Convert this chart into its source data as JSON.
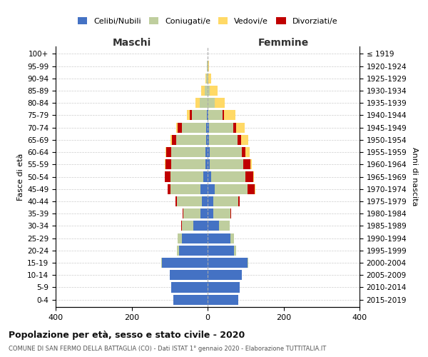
{
  "age_groups": [
    "0-4",
    "5-9",
    "10-14",
    "15-19",
    "20-24",
    "25-29",
    "30-34",
    "35-39",
    "40-44",
    "45-49",
    "50-54",
    "55-59",
    "60-64",
    "65-69",
    "70-74",
    "75-79",
    "80-84",
    "85-89",
    "90-94",
    "95-99",
    "100+"
  ],
  "birth_years": [
    "2015-2019",
    "2010-2014",
    "2005-2009",
    "2000-2004",
    "1995-1999",
    "1990-1994",
    "1985-1989",
    "1980-1984",
    "1975-1979",
    "1970-1974",
    "1965-1969",
    "1960-1964",
    "1955-1959",
    "1950-1954",
    "1945-1949",
    "1940-1944",
    "1935-1939",
    "1930-1934",
    "1925-1929",
    "1920-1924",
    "≤ 1919"
  ],
  "male": {
    "celibi": [
      90,
      95,
      100,
      120,
      75,
      68,
      38,
      18,
      15,
      18,
      12,
      6,
      5,
      4,
      3,
      2,
      0,
      0,
      0,
      0,
      0
    ],
    "coniugati": [
      0,
      0,
      0,
      2,
      5,
      10,
      30,
      45,
      65,
      80,
      85,
      90,
      90,
      78,
      65,
      40,
      20,
      8,
      3,
      1,
      0
    ],
    "vedovi": [
      0,
      0,
      0,
      0,
      0,
      0,
      0,
      0,
      0,
      0,
      0,
      1,
      2,
      3,
      5,
      8,
      12,
      8,
      3,
      1,
      0
    ],
    "divorziati": [
      0,
      0,
      0,
      0,
      0,
      1,
      2,
      3,
      5,
      8,
      15,
      15,
      13,
      12,
      10,
      5,
      0,
      0,
      0,
      0,
      0
    ]
  },
  "female": {
    "nubili": [
      80,
      85,
      90,
      105,
      70,
      60,
      30,
      15,
      15,
      18,
      10,
      6,
      5,
      4,
      3,
      2,
      0,
      0,
      0,
      0,
      0
    ],
    "coniugate": [
      0,
      0,
      0,
      2,
      5,
      10,
      28,
      45,
      65,
      88,
      90,
      88,
      85,
      75,
      65,
      38,
      18,
      6,
      2,
      1,
      0
    ],
    "vedove": [
      0,
      0,
      0,
      0,
      0,
      0,
      0,
      0,
      0,
      1,
      2,
      5,
      10,
      18,
      22,
      30,
      28,
      20,
      8,
      3,
      0
    ],
    "divorziate": [
      0,
      0,
      0,
      0,
      0,
      0,
      1,
      2,
      5,
      18,
      20,
      18,
      10,
      10,
      8,
      3,
      0,
      0,
      0,
      0,
      0
    ]
  },
  "colors": {
    "celibi": "#4472C4",
    "coniugati": "#BFCE9E",
    "vedovi": "#FFD966",
    "divorziati": "#C00000"
  },
  "title": "Popolazione per età, sesso e stato civile - 2020",
  "subtitle": "COMUNE DI SAN FERMO DELLA BATTAGLIA (CO) - Dati ISTAT 1° gennaio 2020 - Elaborazione TUTTITALIA.IT",
  "xlabel_left": "Maschi",
  "xlabel_right": "Femmine",
  "ylabel_left": "Fasce di età",
  "ylabel_right": "Anni di nascita",
  "xlim": 400
}
